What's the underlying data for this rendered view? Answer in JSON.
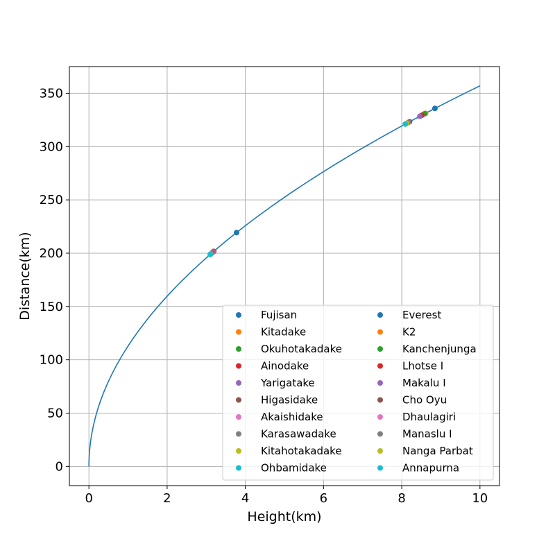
{
  "chart_data": {
    "type": "line",
    "title": "",
    "xlabel": "Height(km)",
    "ylabel": "Distance(km)",
    "xlim": [
      -0.5,
      10.5
    ],
    "ylim": [
      -18,
      375
    ],
    "xticks": [
      0,
      2,
      4,
      6,
      8,
      10
    ],
    "yticks": [
      0,
      50,
      100,
      150,
      200,
      250,
      300,
      350
    ],
    "grid": true,
    "curve": {
      "formula": "sqrt(2*R*h)",
      "R": 6371,
      "x_range": [
        0,
        10
      ],
      "color": "#1f77b4"
    },
    "legend_position": "lower-right",
    "series": [
      {
        "name": "Fujisan",
        "x": 3.776,
        "y": 219.3,
        "color": "#1f77b4"
      },
      {
        "name": "Kitadake",
        "x": 3.193,
        "y": 201.7,
        "color": "#ff7f0e"
      },
      {
        "name": "Okuhotakadake",
        "x": 3.19,
        "y": 201.6,
        "color": "#2ca02c"
      },
      {
        "name": "Ainodake",
        "x": 3.19,
        "y": 201.6,
        "color": "#d62728"
      },
      {
        "name": "Yarigatake",
        "x": 3.18,
        "y": 201.3,
        "color": "#9467bd"
      },
      {
        "name": "Higasidake",
        "x": 3.141,
        "y": 200.0,
        "color": "#8c564b"
      },
      {
        "name": "Akaishidake",
        "x": 3.121,
        "y": 199.4,
        "color": "#e377c2"
      },
      {
        "name": "Karasawadake",
        "x": 3.11,
        "y": 199.1,
        "color": "#7f7f7f"
      },
      {
        "name": "Kitahotakadake",
        "x": 3.106,
        "y": 198.9,
        "color": "#bcbd22"
      },
      {
        "name": "Ohbamidake",
        "x": 3.101,
        "y": 198.8,
        "color": "#17becf"
      },
      {
        "name": "Everest",
        "x": 8.848,
        "y": 335.8,
        "color": "#1f77b4"
      },
      {
        "name": "K2",
        "x": 8.611,
        "y": 331.2,
        "color": "#ff7f0e"
      },
      {
        "name": "Kanchenjunga",
        "x": 8.586,
        "y": 330.8,
        "color": "#2ca02c"
      },
      {
        "name": "Lhotse I",
        "x": 8.516,
        "y": 329.4,
        "color": "#d62728"
      },
      {
        "name": "Makalu I",
        "x": 8.463,
        "y": 328.4,
        "color": "#9467bd"
      },
      {
        "name": "Cho Oyu",
        "x": 8.201,
        "y": 323.3,
        "color": "#8c564b"
      },
      {
        "name": "Dhaulagiri",
        "x": 8.167,
        "y": 322.6,
        "color": "#e377c2"
      },
      {
        "name": "Manaslu I",
        "x": 8.163,
        "y": 322.5,
        "color": "#7f7f7f"
      },
      {
        "name": "Nanga Parbat",
        "x": 8.126,
        "y": 321.8,
        "color": "#bcbd22"
      },
      {
        "name": "Annapurna",
        "x": 8.091,
        "y": 321.1,
        "color": "#17becf"
      }
    ]
  }
}
